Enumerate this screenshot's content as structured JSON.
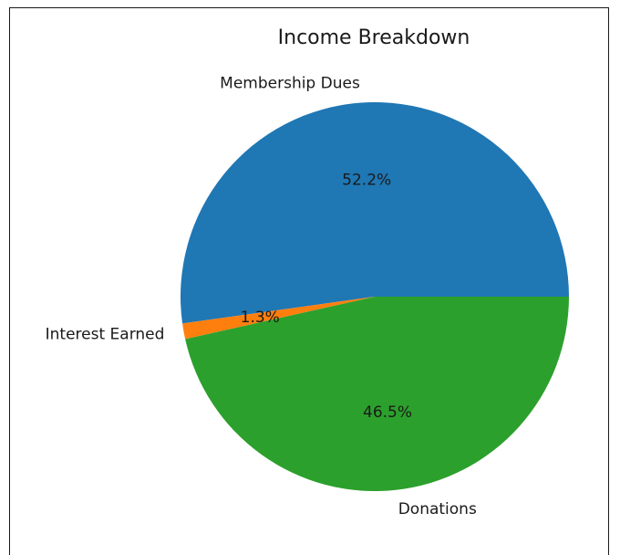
{
  "chart_data": {
    "type": "pie",
    "title": "Income Breakdown",
    "start_angle_deg": 0,
    "direction": "counterclockwise",
    "slices": [
      {
        "label": "Membership Dues",
        "percent": 52.2,
        "percent_label": "52.2%",
        "color": "#1f77b4"
      },
      {
        "label": "Interest Earned",
        "percent": 1.3,
        "percent_label": "1.3%",
        "color": "#ff7f0e"
      },
      {
        "label": "Donations",
        "percent": 46.5,
        "percent_label": "46.5%",
        "color": "#2ca02c"
      }
    ]
  }
}
